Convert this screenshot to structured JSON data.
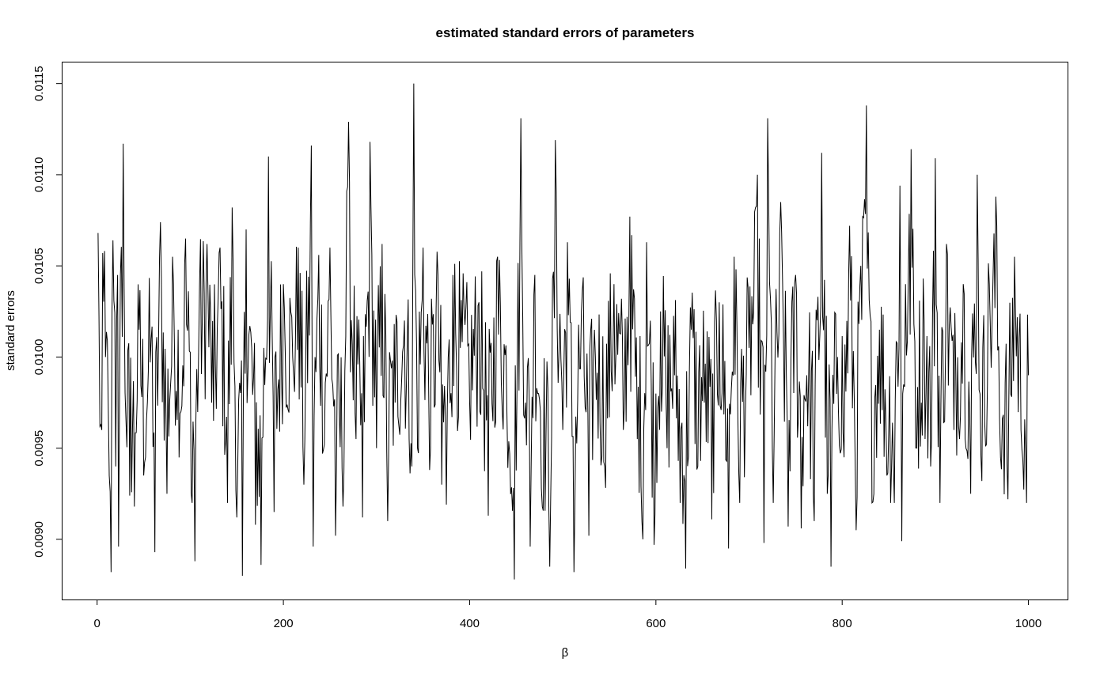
{
  "chart_data": {
    "type": "line",
    "title": "estimated standard errors of parameters",
    "xlabel": "β",
    "ylabel": "standard errors",
    "xlim": [
      -38,
      1042
    ],
    "ylim": [
      0.00867,
      0.01162
    ],
    "x_ticks": [
      0,
      200,
      400,
      600,
      800,
      1000
    ],
    "x_tick_labels": [
      "0",
      "200",
      "400",
      "600",
      "800",
      "1000"
    ],
    "y_ticks": [
      0.009,
      0.0095,
      0.01,
      0.0105,
      0.011,
      0.0115
    ],
    "y_tick_labels": [
      "0.0090",
      "0.0095",
      "0.0100",
      "0.0105",
      "0.0110",
      "0.0115"
    ],
    "grid": false,
    "legend": "none",
    "line_color": "#000000",
    "n_points": 1000,
    "key_points": [
      [
        1,
        0.01068
      ],
      [
        3,
        0.00962
      ],
      [
        5,
        0.0096
      ],
      [
        6,
        0.01057
      ],
      [
        9,
        0.01
      ],
      [
        12,
        0.00972
      ],
      [
        13,
        0.00935
      ],
      [
        15,
        0.00882
      ],
      [
        17,
        0.01064
      ],
      [
        20,
        0.0094
      ],
      [
        22,
        0.01045
      ],
      [
        23,
        0.00896
      ],
      [
        25,
        0.01045
      ],
      [
        28,
        0.01117
      ],
      [
        31,
        0.00965
      ],
      [
        35,
        0.00924
      ],
      [
        40,
        0.00918
      ],
      [
        45,
        0.01015
      ],
      [
        50,
        0.00935
      ],
      [
        58,
        0.0101
      ],
      [
        62,
        0.00893
      ],
      [
        68,
        0.01074
      ],
      [
        75,
        0.00925
      ],
      [
        82,
        0.0104
      ],
      [
        90,
        0.0097
      ],
      [
        95,
        0.01065
      ],
      [
        102,
        0.0092
      ],
      [
        105,
        0.00888
      ],
      [
        110,
        0.0104
      ],
      [
        118,
        0.01062
      ],
      [
        125,
        0.00965
      ],
      [
        132,
        0.0106
      ],
      [
        140,
        0.0092
      ],
      [
        145,
        0.01082
      ],
      [
        150,
        0.00912
      ],
      [
        156,
        0.0088
      ],
      [
        160,
        0.0107
      ],
      [
        170,
        0.00908
      ],
      [
        176,
        0.00886
      ],
      [
        184,
        0.0111
      ],
      [
        190,
        0.00915
      ],
      [
        200,
        0.0104
      ],
      [
        210,
        0.01
      ],
      [
        216,
        0.0106
      ],
      [
        222,
        0.0093
      ],
      [
        230,
        0.01116
      ],
      [
        232,
        0.00896
      ],
      [
        238,
        0.01056
      ],
      [
        244,
        0.00952
      ],
      [
        250,
        0.0106
      ],
      [
        256,
        0.00902
      ],
      [
        264,
        0.00918
      ],
      [
        268,
        0.01091
      ],
      [
        270,
        0.01129
      ],
      [
        278,
        0.00955
      ],
      [
        285,
        0.00912
      ],
      [
        293,
        0.01118
      ],
      [
        300,
        0.0095
      ],
      [
        306,
        0.01062
      ],
      [
        312,
        0.0091
      ],
      [
        320,
        0.00975
      ],
      [
        330,
        0.0102
      ],
      [
        338,
        0.0094
      ],
      [
        340,
        0.01151
      ],
      [
        344,
        0.0095
      ],
      [
        350,
        0.0106
      ],
      [
        358,
        0.0095
      ],
      [
        366,
        0.01045
      ],
      [
        370,
        0.0093
      ],
      [
        375,
        0.00919
      ],
      [
        382,
        0.01045
      ],
      [
        390,
        0.01005
      ],
      [
        400,
        0.00975
      ],
      [
        410,
        0.0103
      ],
      [
        420,
        0.00913
      ],
      [
        430,
        0.01055
      ],
      [
        440,
        0.0097
      ],
      [
        448,
        0.00877
      ],
      [
        455,
        0.01131
      ],
      [
        460,
        0.00975
      ],
      [
        465,
        0.00896
      ],
      [
        470,
        0.01045
      ],
      [
        478,
        0.00918
      ],
      [
        486,
        0.00885
      ],
      [
        492,
        0.01119
      ],
      [
        500,
        0.0096
      ],
      [
        505,
        0.01063
      ],
      [
        512,
        0.00882
      ],
      [
        520,
        0.01025
      ],
      [
        528,
        0.00902
      ],
      [
        535,
        0.01
      ],
      [
        545,
        0.0094
      ],
      [
        555,
        0.0104
      ],
      [
        565,
        0.0096
      ],
      [
        572,
        0.01077
      ],
      [
        580,
        0.00955
      ],
      [
        586,
        0.009
      ],
      [
        590,
        0.01063
      ],
      [
        598,
        0.00897
      ],
      [
        605,
        0.01025
      ],
      [
        612,
        0.0095
      ],
      [
        620,
        0.0099
      ],
      [
        626,
        0.0092
      ],
      [
        632,
        0.00884
      ],
      [
        638,
        0.01015
      ],
      [
        645,
        0.0094
      ],
      [
        652,
        0.00975
      ],
      [
        660,
        0.00911
      ],
      [
        668,
        0.0103
      ],
      [
        678,
        0.00895
      ],
      [
        684,
        0.01055
      ],
      [
        690,
        0.0092
      ],
      [
        700,
        0.01005
      ],
      [
        709,
        0.011
      ],
      [
        716,
        0.00898
      ],
      [
        720,
        0.01131
      ],
      [
        726,
        0.0092
      ],
      [
        734,
        0.01085
      ],
      [
        742,
        0.00907
      ],
      [
        750,
        0.01045
      ],
      [
        756,
        0.00906
      ],
      [
        762,
        0.0099
      ],
      [
        770,
        0.0091
      ],
      [
        778,
        0.01112
      ],
      [
        784,
        0.00925
      ],
      [
        788,
        0.00885
      ],
      [
        795,
        0.01
      ],
      [
        802,
        0.00945
      ],
      [
        808,
        0.01072
      ],
      [
        815,
        0.00905
      ],
      [
        820,
        0.0105
      ],
      [
        826,
        0.01138
      ],
      [
        832,
        0.0092
      ],
      [
        840,
        0.01015
      ],
      [
        848,
        0.00935
      ],
      [
        856,
        0.0092
      ],
      [
        862,
        0.01094
      ],
      [
        864,
        0.00899
      ],
      [
        868,
        0.0104
      ],
      [
        874,
        0.01114
      ],
      [
        880,
        0.0095
      ],
      [
        888,
        0.0102
      ],
      [
        895,
        0.0094
      ],
      [
        900,
        0.01109
      ],
      [
        905,
        0.0092
      ],
      [
        912,
        0.01062
      ],
      [
        920,
        0.0096
      ],
      [
        930,
        0.0104
      ],
      [
        938,
        0.00925
      ],
      [
        945,
        0.011
      ],
      [
        950,
        0.00932
      ],
      [
        958,
        0.0104
      ],
      [
        965,
        0.01088
      ],
      [
        970,
        0.00945
      ],
      [
        978,
        0.00922
      ],
      [
        985,
        0.01055
      ],
      [
        992,
        0.0096
      ],
      [
        998,
        0.0092
      ],
      [
        1000,
        0.0099
      ]
    ]
  }
}
